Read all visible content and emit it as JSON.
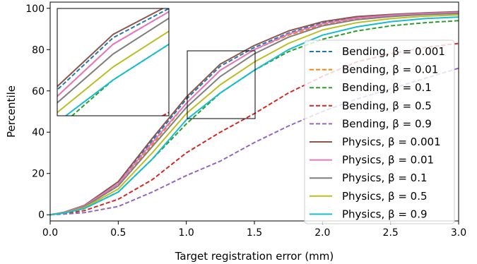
{
  "chart_data": {
    "type": "line",
    "xlabel": "Target registration error (mm)",
    "ylabel": "Percentile",
    "xlim": [
      0.0,
      3.0
    ],
    "ylim": [
      -3,
      103
    ],
    "xticks": [
      0.0,
      0.5,
      1.0,
      1.5,
      2.0,
      2.5,
      3.0
    ],
    "xtick_labels": [
      "0.0",
      "0.5",
      "1.0",
      "1.5",
      "2.0",
      "2.5",
      "3.0"
    ],
    "yticks": [
      0,
      20,
      40,
      60,
      80,
      100
    ],
    "ytick_labels": [
      "0",
      "20",
      "40",
      "60",
      "80",
      "100"
    ],
    "grid": false,
    "legend_position": "right",
    "x": [
      0.0,
      0.1,
      0.25,
      0.5,
      0.75,
      1.0,
      1.25,
      1.5,
      1.75,
      2.0,
      2.25,
      2.5,
      2.75,
      3.0
    ],
    "series": [
      {
        "name": "Bending, β = 0.001",
        "color": "#1f77b4",
        "dashed": true,
        "values": [
          0,
          1,
          4,
          15,
          36,
          56,
          72,
          81,
          88,
          93,
          95.5,
          96.8,
          97.6,
          98.2
        ]
      },
      {
        "name": "Bending, β = 0.01",
        "color": "#ff7f0e",
        "dashed": true,
        "values": [
          0,
          1,
          3.8,
          14,
          34,
          54,
          70,
          80,
          87,
          92,
          95,
          96.3,
          97.1,
          97.8
        ]
      },
      {
        "name": "Bending, β = 0.1",
        "color": "#2ca02c",
        "dashed": true,
        "values": [
          0,
          0.8,
          3,
          11,
          27,
          44,
          59,
          70,
          79,
          85,
          89,
          91.5,
          93,
          94
        ]
      },
      {
        "name": "Bending, β = 0.5",
        "color": "#d62728",
        "dashed": true,
        "values": [
          0,
          0.5,
          2,
          7.5,
          17,
          30,
          40,
          49,
          59,
          67,
          74,
          78,
          81,
          83
        ]
      },
      {
        "name": "Bending, β = 0.9",
        "color": "#9467bd",
        "dashed": true,
        "values": [
          0,
          0.3,
          1,
          4,
          11,
          19,
          26,
          35,
          43,
          50,
          56,
          61,
          66,
          71
        ]
      },
      {
        "name": "Physics, β = 0.001",
        "color": "#8c564b",
        "dashed": false,
        "values": [
          0,
          1.2,
          4.5,
          16,
          37,
          57,
          73,
          82,
          89,
          93.5,
          96,
          97,
          97.8,
          98.4
        ]
      },
      {
        "name": "Physics, β = 0.01",
        "color": "#e377c2",
        "dashed": false,
        "values": [
          0,
          1.1,
          4.2,
          15,
          35,
          54,
          70,
          80,
          87.5,
          92.5,
          95.3,
          96.6,
          97.5,
          98
        ]
      },
      {
        "name": "Physics, β = 0.1",
        "color": "#7f7f7f",
        "dashed": false,
        "values": [
          0,
          1,
          3.8,
          14,
          33,
          52,
          67,
          78,
          86,
          91.5,
          94.5,
          96,
          97,
          97.5
        ]
      },
      {
        "name": "Physics, β = 0.5",
        "color": "#bcbd22",
        "dashed": false,
        "values": [
          0,
          0.9,
          3.4,
          12.5,
          30,
          49,
          63,
          74,
          83,
          89.5,
          93,
          95,
          96.2,
          96.8
        ]
      },
      {
        "name": "Physics, β = 0.9",
        "color": "#17becf",
        "dashed": false,
        "values": [
          0,
          0.8,
          3,
          11,
          27,
          46,
          59,
          70,
          80,
          87,
          91,
          93.5,
          95,
          95.8
        ]
      }
    ],
    "inset": {
      "xlim": [
        1.0,
        1.5
      ],
      "ylim": [
        48,
        81
      ]
    }
  }
}
